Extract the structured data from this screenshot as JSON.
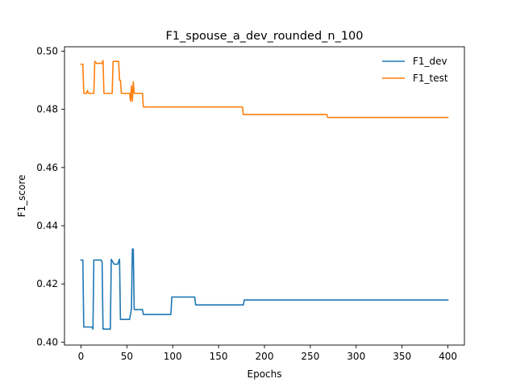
{
  "chart_data": {
    "type": "line",
    "title": "F1_spouse_a_dev_rounded_n_100",
    "xlabel": "Epochs",
    "ylabel": "F1_score",
    "xlim": [
      -18,
      418
    ],
    "ylim": [
      0.399,
      0.5015
    ],
    "xticks": [
      0,
      50,
      100,
      150,
      200,
      250,
      300,
      350,
      400
    ],
    "yticks": [
      0.4,
      0.42,
      0.44,
      0.46,
      0.48,
      0.5
    ],
    "ytick_labels": [
      "0.40",
      "0.42",
      "0.44",
      "0.46",
      "0.48",
      "0.50"
    ],
    "grid": false,
    "legend_position": "top-right",
    "series": [
      {
        "name": "F1_dev",
        "color": "#1f77b4",
        "points": [
          [
            0,
            0.4282
          ],
          [
            2,
            0.4282
          ],
          [
            3,
            0.4052
          ],
          [
            10,
            0.4052
          ],
          [
            12,
            0.4052
          ],
          [
            13,
            0.4045
          ],
          [
            14,
            0.4282
          ],
          [
            22,
            0.4282
          ],
          [
            23,
            0.4275
          ],
          [
            24,
            0.4045
          ],
          [
            32,
            0.4045
          ],
          [
            33,
            0.4285
          ],
          [
            36,
            0.4268
          ],
          [
            40,
            0.4268
          ],
          [
            42,
            0.4285
          ],
          [
            43,
            0.4078
          ],
          [
            53,
            0.4078
          ],
          [
            55,
            0.4115
          ],
          [
            56,
            0.432
          ],
          [
            57,
            0.432
          ],
          [
            58,
            0.4112
          ],
          [
            67,
            0.4112
          ],
          [
            68,
            0.4095
          ],
          [
            98,
            0.4095
          ],
          [
            99,
            0.4155
          ],
          [
            124,
            0.4155
          ],
          [
            125,
            0.4128
          ],
          [
            177,
            0.4128
          ],
          [
            178,
            0.4145
          ],
          [
            400,
            0.4145
          ]
        ]
      },
      {
        "name": "F1_test",
        "color": "#ff7f0e",
        "points": [
          [
            0,
            0.4955
          ],
          [
            2,
            0.4955
          ],
          [
            3,
            0.4855
          ],
          [
            6,
            0.4855
          ],
          [
            7,
            0.4865
          ],
          [
            8,
            0.4855
          ],
          [
            14,
            0.4855
          ],
          [
            15,
            0.4965
          ],
          [
            17,
            0.4958
          ],
          [
            23,
            0.4958
          ],
          [
            24,
            0.4968
          ],
          [
            25,
            0.4855
          ],
          [
            34,
            0.4855
          ],
          [
            35,
            0.4965
          ],
          [
            41,
            0.4965
          ],
          [
            42,
            0.49
          ],
          [
            43,
            0.49
          ],
          [
            44,
            0.4855
          ],
          [
            53,
            0.4855
          ],
          [
            54,
            0.4828
          ],
          [
            55,
            0.488
          ],
          [
            56,
            0.4828
          ],
          [
            57,
            0.4895
          ],
          [
            58,
            0.4855
          ],
          [
            67,
            0.4855
          ],
          [
            68,
            0.4808
          ],
          [
            176,
            0.4808
          ],
          [
            177,
            0.4782
          ],
          [
            268,
            0.4782
          ],
          [
            269,
            0.4772
          ],
          [
            400,
            0.4772
          ]
        ]
      }
    ]
  }
}
